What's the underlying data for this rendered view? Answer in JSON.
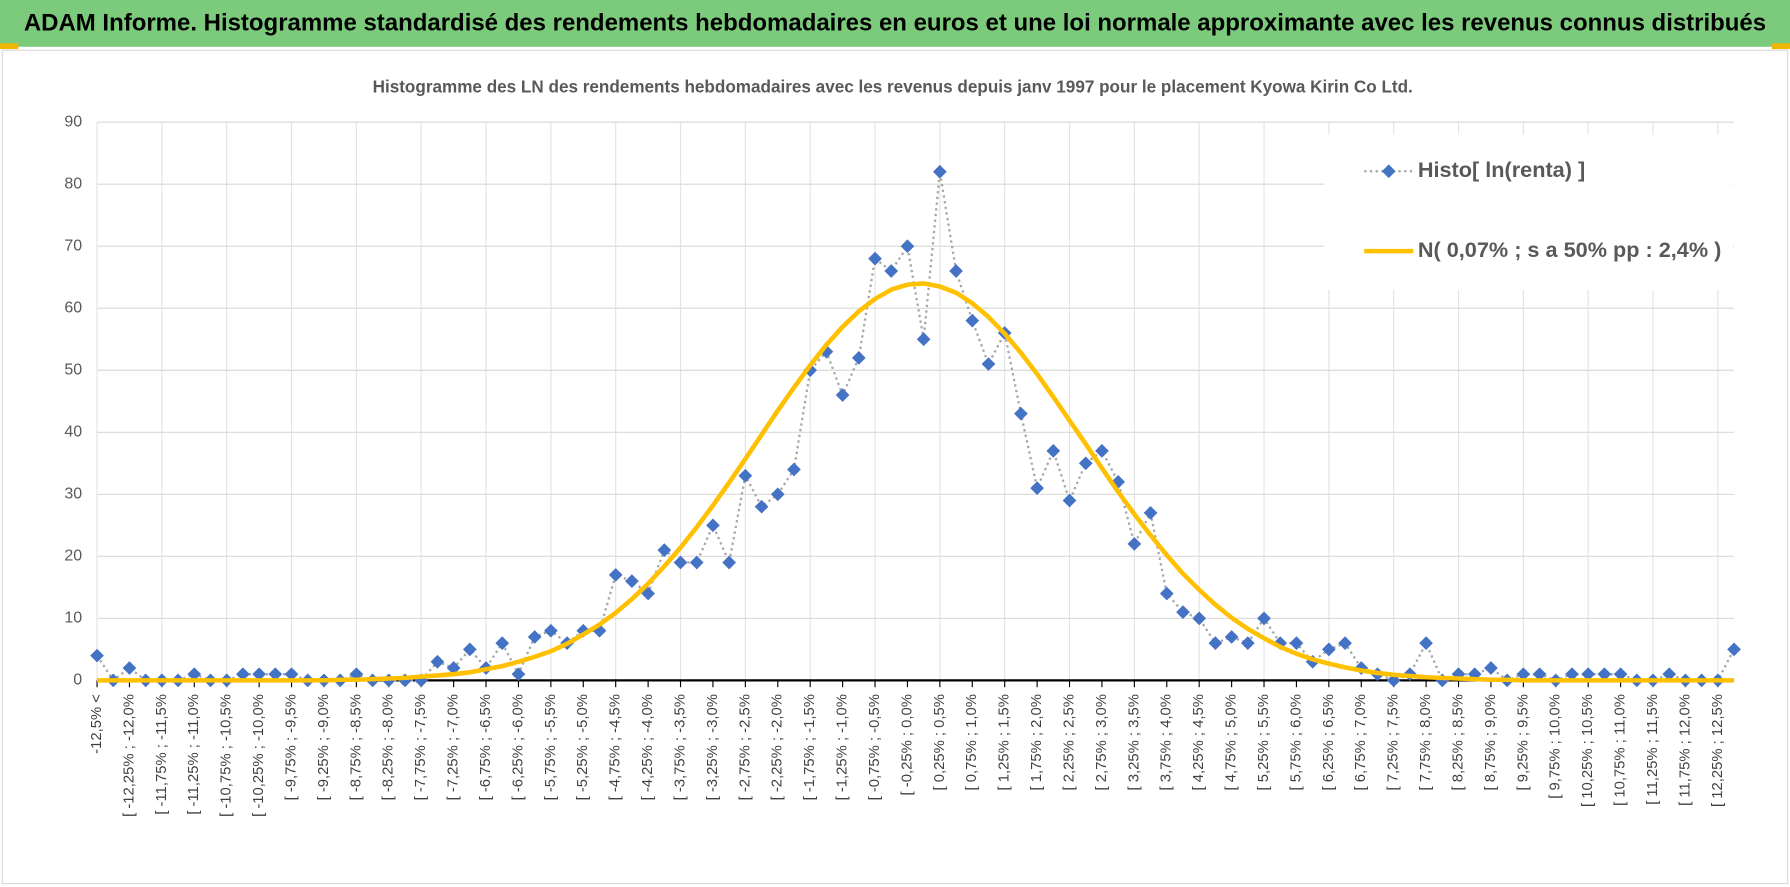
{
  "chart_data": {
    "type": "line",
    "header": "ADAM Informe. Histogramme standardisé des rendements hebdomadaires en euros et une loi normale approximante avec les revenus connus distribués",
    "title": "Histogramme des LN des rendements hebdomadaires avec les revenus depuis janv 1997 pour le placement Kyowa Kirin Co Ltd.",
    "categories": [
      "-12,5% <",
      null,
      "[ -12,25% ; -12,0%",
      null,
      "[ -11,75% ; -11,5%",
      null,
      "[ -11,25% ; -11,0%",
      null,
      "[ -10,75% ; -10,5%",
      null,
      "[ -10,25% ; -10,0%",
      null,
      "[ -9,75% ; -9,5%",
      null,
      "[ -9,25% ; -9,0%",
      null,
      "[ -8,75% ; -8,5%",
      null,
      "[ -8,25% ; -8,0%",
      null,
      "[ -7,75% ; -7,5%",
      null,
      "[ -7,25% ; -7,0%",
      null,
      "[ -6,75% ; -6,5%",
      null,
      "[ -6,25% ; -6,0%",
      null,
      "[ -5,75% ; -5,5%",
      null,
      "[ -5,25% ; -5,0%",
      null,
      "[ -4,75% ; -4,5%",
      null,
      "[ -4,25% ; -4,0%",
      null,
      "[ -3,75% ; -3,5%",
      null,
      "[ -3,25% ; -3,0%",
      null,
      "[ -2,75% ; -2,5%",
      null,
      "[ -2,25% ; -2,0%",
      null,
      "[ -1,75% ; -1,5%",
      null,
      "[ -1,25% ; -1,0%",
      null,
      "[ -0,75% ; -0,5%",
      null,
      "[ -0,25% ; 0,0%",
      null,
      "[ 0,25% ; 0,5%",
      null,
      "[ 0,75% ; 1,0%",
      null,
      "[ 1,25% ; 1,5%",
      null,
      "[ 1,75% ; 2,0%",
      null,
      "[ 2,25% ; 2,5%",
      null,
      "[ 2,75% ; 3,0%",
      null,
      "[ 3,25% ; 3,5%",
      null,
      "[ 3,75% ; 4,0%",
      null,
      "[ 4,25% ; 4,5%",
      null,
      "[ 4,75% ; 5,0%",
      null,
      "[ 5,25% ; 5,5%",
      null,
      "[ 5,75% ; 6,0%",
      null,
      "[ 6,25% ; 6,5%",
      null,
      "[ 6,75% ; 7,0%",
      null,
      "[ 7,25% ; 7,5%",
      null,
      "[ 7,75% ; 8,0%",
      null,
      "[ 8,25% ; 8,5%",
      null,
      "[ 8,75% ; 9,0%",
      null,
      "[ 9,25% ; 9,5%",
      null,
      "[ 9,75% ; 10,0%",
      null,
      "[ 10,25% ; 10,5%",
      null,
      "[ 10,75% ; 11,0%",
      null,
      "[ 11,25% ; 11,5%",
      null,
      "[ 11,75% ; 12,0%",
      null,
      "[ 12,25% ; 12,5%",
      null
    ],
    "series": [
      {
        "name": "Histo[ ln(renta) ]",
        "color": "#4472c4",
        "line_color": "#a6a6a6",
        "marker": "diamond",
        "values": [
          4,
          0,
          2,
          0,
          0,
          0,
          1,
          0,
          0,
          1,
          1,
          1,
          1,
          0,
          0,
          0,
          1,
          0,
          0,
          0,
          0,
          3,
          2,
          5,
          2,
          6,
          1,
          7,
          8,
          6,
          8,
          8,
          17,
          16,
          14,
          21,
          19,
          19,
          25,
          19,
          33,
          28,
          30,
          34,
          50,
          53,
          46,
          52,
          68,
          66,
          70,
          55,
          82,
          66,
          58,
          51,
          56,
          43,
          31,
          37,
          29,
          35,
          37,
          32,
          22,
          27,
          14,
          11,
          10,
          6,
          7,
          6,
          10,
          6,
          6,
          3,
          5,
          6,
          2,
          1,
          0,
          1,
          6,
          0,
          1,
          1,
          2,
          0,
          1,
          1,
          0,
          1,
          1,
          1,
          1,
          0,
          0,
          1,
          0,
          0,
          0,
          5
        ]
      },
      {
        "name": "N( 0,07% ; s a 50% pp : 2,4% )",
        "color": "#ffc000",
        "values": [
          0,
          0,
          0,
          0,
          0,
          0,
          0,
          0,
          0,
          0,
          0,
          0,
          0,
          0,
          0,
          0.1,
          0.1,
          0.2,
          0.3,
          0.4,
          0.6,
          0.8,
          1.0,
          1.3,
          1.8,
          2.3,
          3.0,
          3.8,
          4.7,
          5.9,
          7.4,
          9.0,
          10.9,
          13.1,
          15.6,
          18.4,
          21.4,
          24.7,
          28.2,
          31.9,
          35.7,
          39.6,
          43.5,
          47.2,
          50.8,
          54.1,
          57.0,
          59.5,
          61.5,
          63.0,
          63.8,
          64.0,
          63.5,
          62.5,
          60.8,
          58.6,
          55.9,
          52.8,
          49.4,
          45.7,
          41.9,
          38.1,
          34.2,
          30.4,
          26.8,
          23.4,
          20.2,
          17.2,
          14.6,
          12.2,
          10.1,
          8.3,
          6.8,
          5.4,
          4.3,
          3.4,
          2.7,
          2.1,
          1.6,
          1.2,
          0.9,
          0.7,
          0.5,
          0.4,
          0.3,
          0.2,
          0.1,
          0.1,
          0,
          0,
          0,
          0,
          0,
          0,
          0,
          0,
          0,
          0,
          0,
          0,
          0,
          0
        ]
      }
    ],
    "ylim": [
      0,
      90
    ],
    "yticks": [
      0,
      10,
      20,
      30,
      40,
      50,
      60,
      70,
      80,
      90
    ],
    "grid": true,
    "legend_position": "top-right"
  }
}
